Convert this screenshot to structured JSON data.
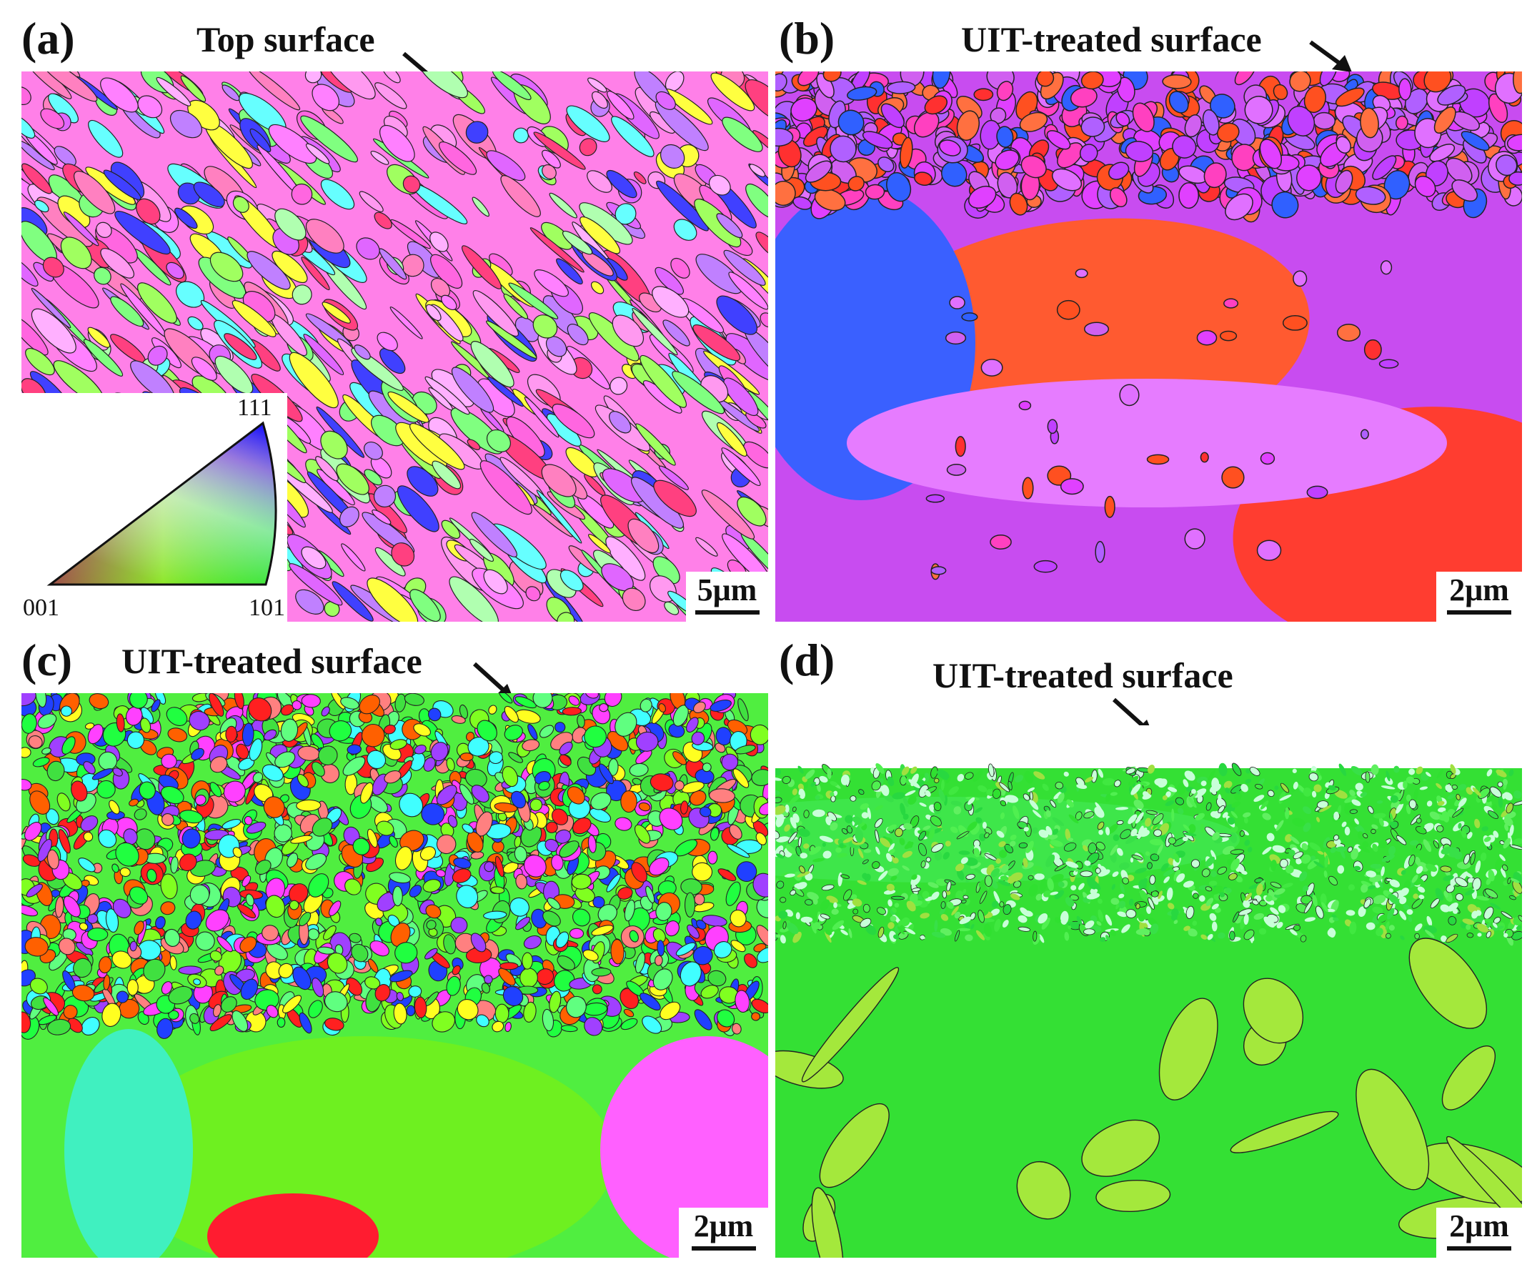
{
  "figure": {
    "panels": [
      {
        "tag": "(a)",
        "surface_label": "Top surface",
        "scale": "5μm"
      },
      {
        "tag": "(b)",
        "surface_label": "UIT-treated surface",
        "scale": "2μm"
      },
      {
        "tag": "(c)",
        "surface_label": "UIT-treated surface",
        "scale": "2μm"
      },
      {
        "tag": "(d)",
        "surface_label": "UIT-treated surface",
        "scale": "2μm"
      }
    ],
    "ipf_key": {
      "corner_top": "111",
      "corner_left": "001",
      "corner_right": "101",
      "colors": {
        "001": "#ff0000",
        "101": "#00e000",
        "111": "#0000ff"
      }
    }
  }
}
